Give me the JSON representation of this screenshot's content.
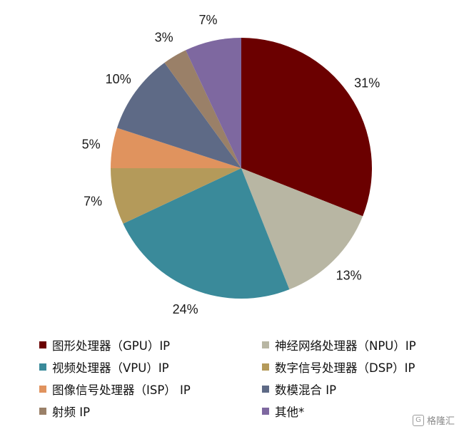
{
  "chart_data": {
    "type": "pie",
    "categories": [
      "图形处理器（GPU）IP",
      "神经网络处理器（NPU）IP",
      "视频处理器（VPU）IP",
      "数字信号处理器（DSP）IP",
      "图像信号处理器（ISP） IP",
      "数模混合 IP",
      "射频 IP",
      "其他*"
    ],
    "values": [
      31,
      13,
      24,
      7,
      5,
      10,
      3,
      7
    ],
    "value_labels": [
      "31%",
      "13%",
      "24%",
      "7%",
      "5%",
      "10%",
      "3%",
      "7%"
    ],
    "colors": [
      "#6b0000",
      "#b8b6a3",
      "#3a8a9a",
      "#b49a5a",
      "#e0935e",
      "#5e6a86",
      "#9a8068",
      "#7e68a0"
    ],
    "legend_placement": "bottom",
    "start_angle_deg": 0,
    "direction": "clockwise"
  },
  "watermark": {
    "text": "格隆汇",
    "icon": "glh-logo-icon"
  }
}
